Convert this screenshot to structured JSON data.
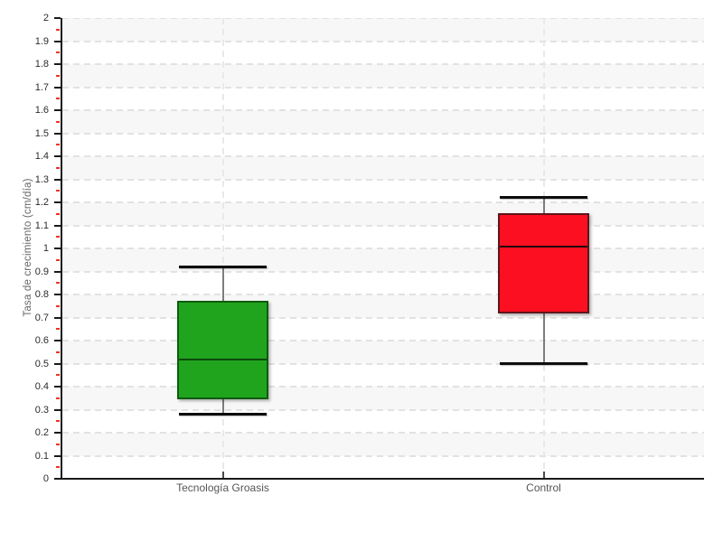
{
  "chart_data": {
    "type": "boxplot",
    "title": "",
    "ylabel": "Tasa de crecimiento (cm/día)",
    "xlabel": "",
    "ylim": [
      0,
      2
    ],
    "ytick_step": 0.1,
    "yminor_tick_step": 0.05,
    "grid": "horizontal dashed gridlines with alternating shaded bands; faint dashed vertical line at each category",
    "legend": "none",
    "categories": [
      "Tecnología Groasis",
      "Control"
    ],
    "series": [
      {
        "name": "Tecnología Groasis",
        "whisker_low": 0.28,
        "q1": 0.35,
        "median": 0.52,
        "q3": 0.77,
        "whisker_high": 0.92,
        "fill_color": "#20A41E",
        "border_color": "#0E5C0E",
        "median_color": "#0B4A0A"
      },
      {
        "name": "Control",
        "whisker_low": 0.5,
        "q1": 0.72,
        "median": 1.01,
        "q3": 1.15,
        "whisker_high": 1.22,
        "fill_color": "#FB0F20",
        "border_color": "#5E161B",
        "median_color": "#23090C"
      }
    ],
    "colors": {
      "band_shade": "#f7f7f7",
      "gridline": "#e2e2e2",
      "axis": "#1a1a1a",
      "major_tick": "#1a1a1a",
      "minor_tick": "#EE3322",
      "whisker": "#7d7d7d",
      "whisker_cap": "#0d0d0d",
      "tick_label": "#2b2b2b",
      "category_label": "#555555",
      "ylabel_color": "#666666"
    }
  }
}
